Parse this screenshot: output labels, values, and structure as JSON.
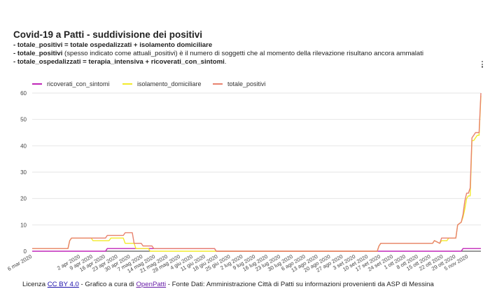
{
  "header": {
    "title": "Covid-19 a Patti - suddivisione dei positivi",
    "line1_bold": "- totale_positivi = totale ospedalizzati + isolamento domiciliare",
    "line2_bold": "- totale_positivi",
    "line2_rest": " (spesso indicato come attuali_positivi) è il numero di soggetti che al momento della rilevazione risultano ancora ammalati",
    "line3_bold": "- totale_ospedalizzati = terapia_intensiva + ricoverati_con_sintomi",
    "line3_rest": "."
  },
  "menu": {
    "icon": "more-vert-icon"
  },
  "footer": {
    "prefix": "Licenza ",
    "license_link": "CC BY 4.0",
    "middle": " - Grafico a cura di ",
    "author_link": "OpenPatti",
    "suffix": " - Fonte Dati: Amministrazione Città di Patti su informazioni provenienti da ASP di Messina"
  },
  "chart_data": {
    "type": "line",
    "legend_position": "top-left",
    "grid": true,
    "ylim": [
      0,
      60
    ],
    "yticks": [
      0,
      10,
      20,
      30,
      40,
      50,
      60
    ],
    "xlim": [
      "2020-03-06",
      "2020-11-12"
    ],
    "xticks": [
      "6 mar 2020",
      "2 apr 2020",
      "9 apr 2020",
      "16 apr 2020",
      "23 apr 2020",
      "30 apr 2020",
      "7 mag 2020",
      "14 mag 2020",
      "21 mag 2020",
      "28 mag 2020",
      "4 giu 2020",
      "11 giu 2020",
      "18 giu 2020",
      "25 giu 2020",
      "2 lug 2020",
      "9 lug 2020",
      "16 lug 2020",
      "23 lug 2020",
      "30 lug 2020",
      "6 ago 2020",
      "13 ago 2020",
      "20 ago 2020",
      "27 ago 2020",
      "3 set 2020",
      "10 set 2020",
      "17 set 2020",
      "24 set 2020",
      "1 ott 2020",
      "8 ott 2020",
      "15 ott 2020",
      "22 ott 2020",
      "29 ott 2020",
      "5 nov 2020"
    ],
    "xtick_dates": [
      "2020-03-06",
      "2020-04-02",
      "2020-04-09",
      "2020-04-16",
      "2020-04-23",
      "2020-04-30",
      "2020-05-07",
      "2020-05-14",
      "2020-05-21",
      "2020-05-28",
      "2020-06-04",
      "2020-06-11",
      "2020-06-18",
      "2020-06-25",
      "2020-07-02",
      "2020-07-09",
      "2020-07-16",
      "2020-07-23",
      "2020-07-30",
      "2020-08-06",
      "2020-08-13",
      "2020-08-20",
      "2020-08-27",
      "2020-09-03",
      "2020-09-10",
      "2020-09-17",
      "2020-09-24",
      "2020-10-01",
      "2020-10-08",
      "2020-10-15",
      "2020-10-22",
      "2020-10-29",
      "2020-11-05"
    ],
    "series": [
      {
        "name": "ricoverati_con_sintomi",
        "color": "#c026b8",
        "points": [
          [
            "2020-03-06",
            0
          ],
          [
            "2020-03-28",
            0
          ],
          [
            "2020-04-16",
            0
          ],
          [
            "2020-04-17",
            1
          ],
          [
            "2020-06-16",
            1
          ],
          [
            "2020-06-17",
            0
          ],
          [
            "2020-11-01",
            0
          ],
          [
            "2020-11-02",
            1
          ],
          [
            "2020-11-12",
            1
          ]
        ]
      },
      {
        "name": "isolamento_domiciliare",
        "color": "#f2ea2a",
        "points": [
          [
            "2020-03-06",
            1
          ],
          [
            "2020-03-26",
            1
          ],
          [
            "2020-03-27",
            4
          ],
          [
            "2020-03-28",
            5
          ],
          [
            "2020-04-08",
            5
          ],
          [
            "2020-04-09",
            4
          ],
          [
            "2020-04-18",
            4
          ],
          [
            "2020-04-19",
            5
          ],
          [
            "2020-04-26",
            5
          ],
          [
            "2020-04-27",
            3
          ],
          [
            "2020-05-02",
            3
          ],
          [
            "2020-05-03",
            1
          ],
          [
            "2020-05-10",
            1
          ],
          [
            "2020-05-11",
            0
          ],
          [
            "2020-06-16",
            0
          ],
          [
            "2020-09-15",
            0
          ],
          [
            "2020-09-16",
            2
          ],
          [
            "2020-09-17",
            3
          ],
          [
            "2020-10-16",
            3
          ],
          [
            "2020-10-17",
            4
          ],
          [
            "2020-10-20",
            3
          ],
          [
            "2020-10-21",
            4
          ],
          [
            "2020-10-24",
            4
          ],
          [
            "2020-10-25",
            5
          ],
          [
            "2020-10-29",
            5
          ],
          [
            "2020-10-30",
            10
          ],
          [
            "2020-11-01",
            11
          ],
          [
            "2020-11-02",
            13
          ],
          [
            "2020-11-03",
            16
          ],
          [
            "2020-11-04",
            20
          ],
          [
            "2020-11-05",
            21
          ],
          [
            "2020-11-06",
            21
          ],
          [
            "2020-11-07",
            42
          ],
          [
            "2020-11-08",
            42
          ],
          [
            "2020-11-09",
            43
          ],
          [
            "2020-11-10",
            44
          ],
          [
            "2020-11-11",
            44
          ],
          [
            "2020-11-12",
            59
          ]
        ]
      },
      {
        "name": "totale_positivi",
        "color": "#e8826e",
        "points": [
          [
            "2020-03-06",
            1
          ],
          [
            "2020-03-26",
            1
          ],
          [
            "2020-03-27",
            4
          ],
          [
            "2020-03-28",
            5
          ],
          [
            "2020-04-16",
            5
          ],
          [
            "2020-04-17",
            6
          ],
          [
            "2020-04-26",
            6
          ],
          [
            "2020-04-27",
            7
          ],
          [
            "2020-05-01",
            7
          ],
          [
            "2020-05-02",
            3
          ],
          [
            "2020-05-06",
            3
          ],
          [
            "2020-05-07",
            2
          ],
          [
            "2020-05-12",
            2
          ],
          [
            "2020-05-13",
            1
          ],
          [
            "2020-06-16",
            1
          ],
          [
            "2020-06-17",
            0
          ],
          [
            "2020-09-15",
            0
          ],
          [
            "2020-09-16",
            2
          ],
          [
            "2020-09-17",
            3
          ],
          [
            "2020-10-16",
            3
          ],
          [
            "2020-10-17",
            4
          ],
          [
            "2020-10-20",
            3
          ],
          [
            "2020-10-21",
            5
          ],
          [
            "2020-10-29",
            5
          ],
          [
            "2020-10-30",
            10
          ],
          [
            "2020-11-01",
            11
          ],
          [
            "2020-11-02",
            14
          ],
          [
            "2020-11-03",
            19
          ],
          [
            "2020-11-04",
            22
          ],
          [
            "2020-11-05",
            22
          ],
          [
            "2020-11-06",
            24
          ],
          [
            "2020-11-07",
            43
          ],
          [
            "2020-11-08",
            44
          ],
          [
            "2020-11-09",
            45
          ],
          [
            "2020-11-11",
            45
          ],
          [
            "2020-11-12",
            60
          ]
        ]
      }
    ]
  }
}
